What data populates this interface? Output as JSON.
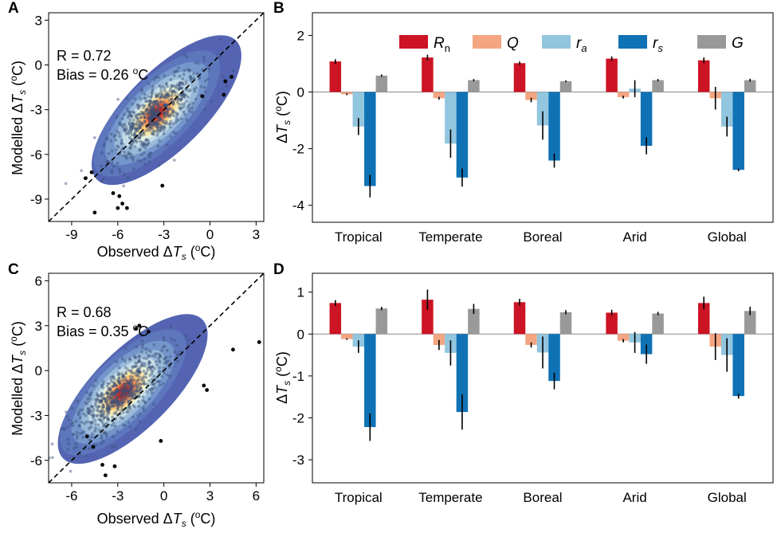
{
  "colors": {
    "Rn": "#cc1424",
    "Q": "#f4a582",
    "ra": "#92c5de",
    "rs": "#0f72b5",
    "G": "#999999"
  },
  "legend": [
    {
      "key": "Rn",
      "base": "R",
      "sub": "n",
      "color": "#cc1424"
    },
    {
      "key": "Q",
      "base": "Q",
      "sub": "",
      "color": "#f4a582"
    },
    {
      "key": "ra",
      "base": "r",
      "sub": "a",
      "color": "#92c5de"
    },
    {
      "key": "rs",
      "base": "r",
      "sub": "s",
      "color": "#0f72b5"
    },
    {
      "key": "G",
      "base": "G",
      "sub": "",
      "color": "#999999"
    }
  ],
  "chart_data": [
    {
      "panel": "A",
      "type": "scatter",
      "xlabel": "Observed ΔTs (oC)",
      "ylabel": "Modelled ΔTs (oC)",
      "xlim": [
        -10.5,
        3.5
      ],
      "ylim": [
        -10.5,
        3.5
      ],
      "xticks": [
        -9,
        -6,
        -3,
        0,
        3
      ],
      "yticks": [
        -9,
        -6,
        -3,
        0,
        3
      ],
      "annotations": [
        "R = 0.72",
        "Bias = 0.26 oC"
      ],
      "reference_line": "1:1 dashed",
      "density_center": [
        -3.6,
        -3.4
      ],
      "outliers": [
        [
          -8.1,
          -7.6
        ],
        [
          -7.7,
          -7.2
        ],
        [
          -6.3,
          -8.6
        ],
        [
          -5.9,
          -8.8
        ],
        [
          -5.7,
          -9.3
        ],
        [
          -6.0,
          -9.6
        ],
        [
          -5.4,
          -9.6
        ],
        [
          -7.5,
          -9.9
        ],
        [
          -3.1,
          -8.1
        ],
        [
          1.0,
          -1.1
        ],
        [
          1.4,
          -0.8
        ],
        [
          0.9,
          -2.0
        ],
        [
          -0.5,
          -2.1
        ]
      ]
    },
    {
      "panel": "B",
      "type": "bar",
      "ylabel": "ΔTs (oC)",
      "ylim": [
        -4.6,
        2.8
      ],
      "yticks": [
        -4,
        -2,
        0,
        2
      ],
      "categories": [
        "Tropical",
        "Temperate",
        "Boreal",
        "Arid",
        "Global"
      ],
      "series": [
        {
          "name": "Rn",
          "values": [
            1.08,
            1.22,
            1.02,
            1.18,
            1.12
          ],
          "errors": [
            0.08,
            0.1,
            0.06,
            0.08,
            0.1
          ]
        },
        {
          "name": "Q",
          "values": [
            -0.08,
            -0.22,
            -0.28,
            -0.18,
            -0.22
          ],
          "errors": [
            0.03,
            0.05,
            0.08,
            0.05,
            0.4
          ]
        },
        {
          "name": "ra",
          "values": [
            -1.22,
            -1.82,
            -1.18,
            0.12,
            -1.22
          ],
          "errors": [
            0.3,
            0.5,
            0.5,
            0.3,
            0.35
          ]
        },
        {
          "name": "rs",
          "values": [
            -3.32,
            -3.02,
            -2.42,
            -1.9,
            -2.75
          ],
          "errors": [
            0.4,
            0.32,
            0.25,
            0.3,
            0.05
          ]
        },
        {
          "name": "G",
          "values": [
            0.58,
            0.42,
            0.38,
            0.42,
            0.42
          ],
          "errors": [
            0.04,
            0.04,
            0.03,
            0.04,
            0.05
          ]
        }
      ]
    },
    {
      "panel": "C",
      "type": "scatter",
      "xlabel": "Observed ΔTs (oC)",
      "ylabel": "Modelled ΔTs (oC)",
      "xlim": [
        -7.5,
        6.5
      ],
      "ylim": [
        -7.5,
        6.5
      ],
      "xticks": [
        -6,
        -3,
        0,
        3,
        6
      ],
      "yticks": [
        -6,
        -3,
        0,
        3,
        6
      ],
      "annotations": [
        "R = 0.68",
        "Bias = 0.35 oC"
      ],
      "reference_line": "1:1 dashed",
      "density_center": [
        -2.8,
        -1.6
      ],
      "outliers": [
        [
          -1.6,
          3.0
        ],
        [
          -1.8,
          2.8
        ],
        [
          -1.0,
          2.6
        ],
        [
          4.5,
          1.4
        ],
        [
          6.2,
          1.9
        ],
        [
          2.6,
          -1.0
        ],
        [
          2.8,
          -1.3
        ],
        [
          -5.0,
          -4.4
        ],
        [
          -4.6,
          -5.1
        ],
        [
          -4.0,
          -6.3
        ],
        [
          -3.8,
          -7.0
        ],
        [
          -3.2,
          -6.4
        ],
        [
          -0.2,
          -4.7
        ]
      ]
    },
    {
      "panel": "D",
      "type": "bar",
      "ylabel": "ΔTs (oC)",
      "ylim": [
        -3.55,
        1.45
      ],
      "yticks": [
        -3,
        -2,
        -1,
        0,
        1
      ],
      "categories": [
        "Tropical",
        "Temperate",
        "Boreal",
        "Arid",
        "Global"
      ],
      "series": [
        {
          "name": "Rn",
          "values": [
            0.74,
            0.82,
            0.76,
            0.51,
            0.74
          ],
          "errors": [
            0.07,
            0.24,
            0.08,
            0.07,
            0.15
          ]
        },
        {
          "name": "Q",
          "values": [
            -0.12,
            -0.26,
            -0.26,
            -0.16,
            -0.3
          ],
          "errors": [
            0.02,
            0.12,
            0.06,
            0.04,
            0.32
          ]
        },
        {
          "name": "ra",
          "values": [
            -0.3,
            -0.45,
            -0.44,
            -0.2,
            -0.5
          ],
          "errors": [
            0.15,
            0.3,
            0.38,
            0.25,
            0.4
          ]
        },
        {
          "name": "rs",
          "values": [
            -2.22,
            -1.86,
            -1.12,
            -0.48,
            -1.48
          ],
          "errors": [
            0.33,
            0.42,
            0.2,
            0.23,
            0.06
          ]
        },
        {
          "name": "G",
          "values": [
            0.61,
            0.6,
            0.52,
            0.49,
            0.55
          ],
          "errors": [
            0.04,
            0.12,
            0.05,
            0.04,
            0.1
          ]
        }
      ]
    }
  ]
}
